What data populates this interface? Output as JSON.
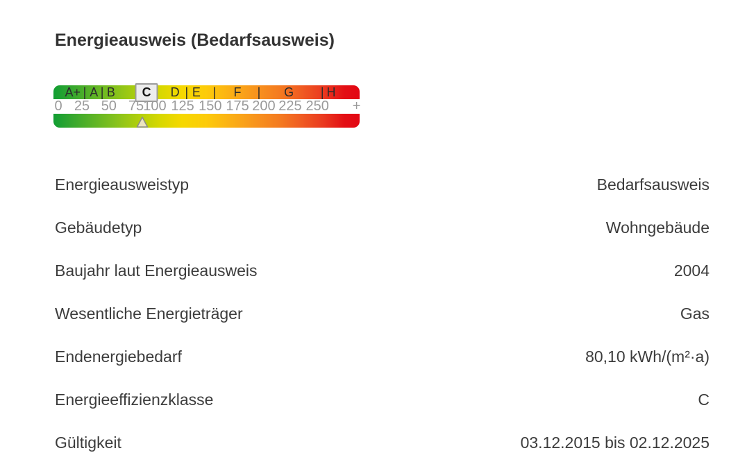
{
  "header": {
    "title": "Energieausweis (Bedarfsausweis)"
  },
  "energy_scale": {
    "class_labels": [
      {
        "text": "A+",
        "pos": 6.3,
        "type": "class"
      },
      {
        "text": "|",
        "pos": 10.2,
        "type": "separator"
      },
      {
        "text": "A",
        "pos": 13.2,
        "type": "class"
      },
      {
        "text": "|",
        "pos": 15.9,
        "type": "separator"
      },
      {
        "text": "B",
        "pos": 18.8,
        "type": "class"
      },
      {
        "text": "C",
        "pos": 30.4,
        "type": "class",
        "boxed": true
      },
      {
        "text": "D",
        "pos": 39.7,
        "type": "class"
      },
      {
        "text": "|",
        "pos": 43.5,
        "type": "separator"
      },
      {
        "text": "E",
        "pos": 46.7,
        "type": "class"
      },
      {
        "text": "|",
        "pos": 52.6,
        "type": "separator"
      },
      {
        "text": "F",
        "pos": 60.1,
        "type": "class"
      },
      {
        "text": "|",
        "pos": 67.1,
        "type": "separator"
      },
      {
        "text": "G",
        "pos": 76.9,
        "type": "class"
      },
      {
        "text": "|",
        "pos": 87.8,
        "type": "separator"
      },
      {
        "text": "H",
        "pos": 90.7,
        "type": "class"
      }
    ],
    "ticks": [
      {
        "text": "0",
        "pos": 1.6
      },
      {
        "text": "25",
        "pos": 9.3
      },
      {
        "text": "50",
        "pos": 18.1
      },
      {
        "text": "75",
        "pos": 27.0
      },
      {
        "text": "100",
        "pos": 33.1
      },
      {
        "text": "125",
        "pos": 42.2
      },
      {
        "text": "150",
        "pos": 51.2
      },
      {
        "text": "175",
        "pos": 60.1
      },
      {
        "text": "200",
        "pos": 68.7
      },
      {
        "text": "225",
        "pos": 77.3
      },
      {
        "text": "250",
        "pos": 86.2
      },
      {
        "text": "+",
        "pos": 99.0
      }
    ],
    "gradient": [
      {
        "color": "#119e33",
        "pos": 0
      },
      {
        "color": "#2fa52f",
        "pos": 5
      },
      {
        "color": "#57b227",
        "pos": 12
      },
      {
        "color": "#84c11d",
        "pos": 20
      },
      {
        "color": "#b1cf0b",
        "pos": 28
      },
      {
        "color": "#d8d800",
        "pos": 35
      },
      {
        "color": "#f6d800",
        "pos": 42
      },
      {
        "color": "#fdcb0a",
        "pos": 50
      },
      {
        "color": "#fbaf15",
        "pos": 58
      },
      {
        "color": "#f8941d",
        "pos": 66
      },
      {
        "color": "#f47a20",
        "pos": 74
      },
      {
        "color": "#f05b22",
        "pos": 81
      },
      {
        "color": "#ea3a1f",
        "pos": 88
      },
      {
        "color": "#e30f14",
        "pos": 95
      },
      {
        "color": "#e30613",
        "pos": 100
      }
    ],
    "marker": {
      "pos_pct": 29.0,
      "fill": "#ece5c0",
      "stroke": "#8b8b8b"
    }
  },
  "details": {
    "rows": [
      {
        "label": "Energieausweistyp",
        "value": "Bedarfsausweis"
      },
      {
        "label": "Gebäudetyp",
        "value": "Wohngebäude"
      },
      {
        "label": "Baujahr laut Energieausweis",
        "value": "2004"
      },
      {
        "label": "Wesentliche Energieträger",
        "value": "Gas"
      },
      {
        "label": "Endenergiebedarf",
        "value": "80,10 kWh/(m²·a)"
      },
      {
        "label": "Energieeffizienzklasse",
        "value": "C"
      },
      {
        "label": "Gültigkeit",
        "value": "03.12.2015 bis 02.12.2025"
      }
    ]
  }
}
